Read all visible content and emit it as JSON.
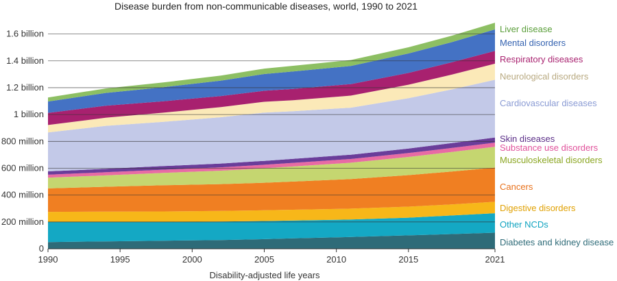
{
  "chart_data": {
    "type": "area",
    "stacked": true,
    "title": "Disease burden from non-communicable diseases, world, 1990 to 2021",
    "xlabel": "Disability-adjusted life years",
    "ylabel": "",
    "x": [
      1990,
      1994,
      1998,
      2002,
      2005,
      2007,
      2011,
      2015,
      2018,
      2021
    ],
    "xticks": [
      1990,
      1995,
      2000,
      2005,
      2010,
      2015,
      2021
    ],
    "xtick_labels": [
      "1990",
      "1995",
      "2000",
      "2005",
      "2010",
      "2015",
      "2021"
    ],
    "ylim": [
      0,
      1700000000
    ],
    "yticks": [
      0,
      200000000,
      400000000,
      600000000,
      800000000,
      1000000000,
      1200000000,
      1400000000,
      1600000000
    ],
    "ytick_labels": [
      "0",
      "200 million",
      "400 million",
      "600 million",
      "800 million",
      "1 billion",
      "1.2 billion",
      "1.4 billion",
      "1.6 billion"
    ],
    "series": [
      {
        "name": "Diabetes and kidney disease",
        "color": "#2e6b78",
        "values": [
          50,
          55,
          60,
          65,
          72,
          78,
          88,
          100,
          110,
          120
        ]
      },
      {
        "name": "Other NCDs",
        "color": "#14a8c4",
        "values": [
          150,
          145,
          140,
          138,
          135,
          133,
          130,
          132,
          138,
          145
        ]
      },
      {
        "name": "Digestive disorders",
        "color": "#f7b719",
        "values": [
          75,
          77,
          78,
          79,
          80,
          80,
          81,
          82,
          83,
          85
        ]
      },
      {
        "name": "Cancers",
        "color": "#f07f22",
        "values": [
          175,
          185,
          195,
          200,
          205,
          210,
          220,
          235,
          245,
          255
        ]
      },
      {
        "name": "Musculoskeletal disorders",
        "color": "#c5d670",
        "values": [
          80,
          85,
          92,
          100,
          108,
          112,
          122,
          135,
          145,
          155
        ]
      },
      {
        "name": "Substance use disorders",
        "color": "#e86ba4",
        "values": [
          22,
          23,
          24,
          25,
          26,
          27,
          28,
          29,
          30,
          31
        ]
      },
      {
        "name": "Skin diseases",
        "color": "#6a3d9a",
        "values": [
          25,
          26,
          27,
          28,
          29,
          30,
          32,
          34,
          36,
          38
        ]
      },
      {
        "name": "Cardiovascular diseases",
        "color": "#c3c9e8",
        "values": [
          290,
          320,
          330,
          345,
          360,
          355,
          350,
          375,
          400,
          430
        ]
      },
      {
        "name": "Neurological disorders",
        "color": "#fbe9b8",
        "values": [
          55,
          60,
          68,
          75,
          80,
          82,
          90,
          100,
          110,
          120
        ]
      },
      {
        "name": "Respiratory diseases",
        "color": "#a8216f",
        "values": [
          90,
          90,
          85,
          83,
          82,
          84,
          86,
          88,
          92,
          95
        ]
      },
      {
        "name": "Mental disorders",
        "color": "#4472c4",
        "values": [
          85,
          95,
          105,
          115,
          125,
          130,
          135,
          145,
          150,
          160
        ]
      },
      {
        "name": "Liver disease",
        "color": "#8dbf63",
        "values": [
          30,
          33,
          35,
          37,
          40,
          42,
          44,
          46,
          48,
          50
        ]
      }
    ],
    "value_unit": "million",
    "legend": [
      {
        "label": "Liver disease",
        "color": "#5a9e3a"
      },
      {
        "label": "Mental disorders",
        "color": "#3462b0"
      },
      {
        "label": "Respiratory diseases",
        "color": "#a8216f"
      },
      {
        "label": "Neurological disorders",
        "color": "#b8a980"
      },
      {
        "label": "Cardiovascular diseases",
        "color": "#8a9bd4"
      },
      {
        "label": "Skin diseases",
        "color": "#5a2d87"
      },
      {
        "label": "Substance use disorders",
        "color": "#e0509a"
      },
      {
        "label": "Musculoskeletal disorders",
        "color": "#8aa520"
      },
      {
        "label": "Cancers",
        "color": "#e8701a"
      },
      {
        "label": "Digestive disorders",
        "color": "#e0a000"
      },
      {
        "label": "Other NCDs",
        "color": "#0fa3c0"
      },
      {
        "label": "Diabetes and kidney disease",
        "color": "#2e6b78"
      }
    ],
    "grid": true,
    "legend_position": "right"
  }
}
